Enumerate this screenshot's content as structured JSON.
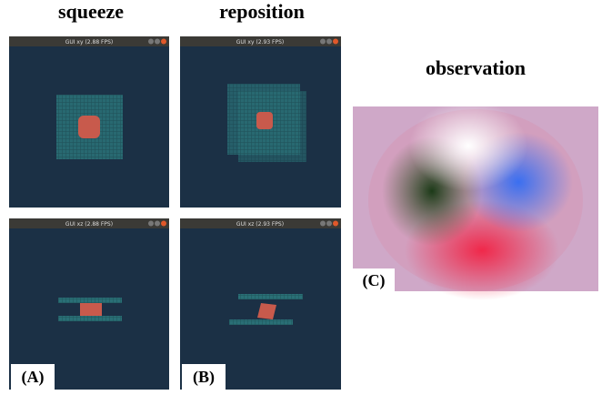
{
  "headings": {
    "left": "squeeze",
    "middle": "reposition",
    "right": "observation"
  },
  "windows": {
    "top_left": "GUI xy (2.88 FPS)",
    "top_right": "GUI xy (2.93 FPS)",
    "bottom_left": "GUI xz (2.88 FPS)",
    "bottom_right": "GUI xz (2.93 FPS)"
  },
  "panel_labels": {
    "a": "(A)",
    "b": "(B)",
    "c": "(C)"
  }
}
